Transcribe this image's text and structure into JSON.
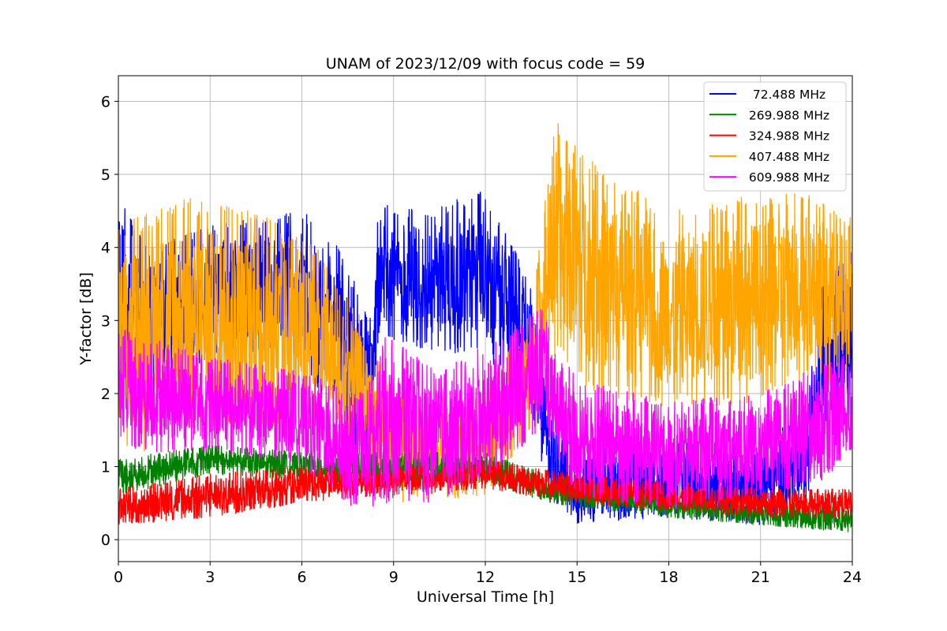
{
  "chart_data": {
    "type": "line",
    "title": "UNAM of 2023/12/09 with focus code = 59",
    "xlabel": "Universal Time [h]",
    "ylabel": "Y-factor [dB]",
    "xlim": [
      0,
      24
    ],
    "ylim": [
      -0.3,
      6.35
    ],
    "xticks": [
      0,
      3,
      6,
      9,
      12,
      15,
      18,
      21,
      24
    ],
    "yticks": [
      0,
      1,
      2,
      3,
      4,
      5,
      6
    ],
    "grid": true,
    "legend_position": "top-right",
    "series": [
      {
        "name": "  72.488 MHz",
        "color": "#0000ff",
        "envelope": [
          {
            "x": 0,
            "lo": 2.2,
            "hi": 4.7
          },
          {
            "x": 1,
            "lo": 1.8,
            "hi": 4.0
          },
          {
            "x": 3,
            "lo": 2.5,
            "hi": 4.3
          },
          {
            "x": 6,
            "lo": 2.5,
            "hi": 4.5
          },
          {
            "x": 7,
            "lo": 1.5,
            "hi": 4.2
          },
          {
            "x": 8.3,
            "lo": 1.0,
            "hi": 3.0
          },
          {
            "x": 8.5,
            "lo": 2.8,
            "hi": 4.6
          },
          {
            "x": 10,
            "lo": 2.6,
            "hi": 4.5
          },
          {
            "x": 12,
            "lo": 2.5,
            "hi": 4.8
          },
          {
            "x": 13.5,
            "lo": 1.8,
            "hi": 3.5
          },
          {
            "x": 14,
            "lo": 0.6,
            "hi": 2.0
          },
          {
            "x": 15,
            "lo": 0.2,
            "hi": 1.2
          },
          {
            "x": 18,
            "lo": 0.3,
            "hi": 1.4
          },
          {
            "x": 21,
            "lo": 0.2,
            "hi": 1.3
          },
          {
            "x": 22.5,
            "lo": 0.5,
            "hi": 1.8
          },
          {
            "x": 23,
            "lo": 1.5,
            "hi": 3.5
          },
          {
            "x": 24,
            "lo": 1.5,
            "hi": 4.0
          }
        ]
      },
      {
        "name": " 269.988 MHz",
        "color": "#008000",
        "envelope": [
          {
            "x": 0,
            "lo": 0.6,
            "hi": 1.1
          },
          {
            "x": 3,
            "lo": 0.9,
            "hi": 1.3
          },
          {
            "x": 6,
            "lo": 0.8,
            "hi": 1.2
          },
          {
            "x": 9,
            "lo": 0.7,
            "hi": 1.2
          },
          {
            "x": 12,
            "lo": 0.8,
            "hi": 1.2
          },
          {
            "x": 14,
            "lo": 0.5,
            "hi": 0.9
          },
          {
            "x": 18,
            "lo": 0.3,
            "hi": 0.6
          },
          {
            "x": 21,
            "lo": 0.2,
            "hi": 0.5
          },
          {
            "x": 24,
            "lo": 0.1,
            "hi": 0.5
          }
        ]
      },
      {
        "name": " 324.988 MHz",
        "color": "#ff0000",
        "envelope": [
          {
            "x": 0,
            "lo": 0.2,
            "hi": 0.7
          },
          {
            "x": 3,
            "lo": 0.3,
            "hi": 0.9
          },
          {
            "x": 6,
            "lo": 0.5,
            "hi": 1.0
          },
          {
            "x": 9,
            "lo": 0.6,
            "hi": 1.0
          },
          {
            "x": 12,
            "lo": 0.7,
            "hi": 1.1
          },
          {
            "x": 15,
            "lo": 0.5,
            "hi": 0.9
          },
          {
            "x": 18,
            "lo": 0.4,
            "hi": 0.8
          },
          {
            "x": 21,
            "lo": 0.3,
            "hi": 0.7
          },
          {
            "x": 24,
            "lo": 0.3,
            "hi": 0.7
          }
        ]
      },
      {
        "name": " 407.488 MHz",
        "color": "#ffa500",
        "envelope": [
          {
            "x": 0,
            "lo": 1.0,
            "hi": 4.3
          },
          {
            "x": 2,
            "lo": 1.5,
            "hi": 4.7
          },
          {
            "x": 4.5,
            "lo": 1.5,
            "hi": 4.5
          },
          {
            "x": 6.5,
            "lo": 1.5,
            "hi": 4.0
          },
          {
            "x": 8,
            "lo": 1.0,
            "hi": 3.0
          },
          {
            "x": 9,
            "lo": 0.5,
            "hi": 2.0
          },
          {
            "x": 12,
            "lo": 0.6,
            "hi": 2.0
          },
          {
            "x": 13.5,
            "lo": 1.5,
            "hi": 3.2
          },
          {
            "x": 14.3,
            "lo": 2.5,
            "hi": 5.8
          },
          {
            "x": 15.5,
            "lo": 2.0,
            "hi": 5.2
          },
          {
            "x": 18,
            "lo": 1.8,
            "hi": 4.5
          },
          {
            "x": 20.5,
            "lo": 1.8,
            "hi": 4.7
          },
          {
            "x": 22.5,
            "lo": 2.2,
            "hi": 4.8
          },
          {
            "x": 24,
            "lo": 2.0,
            "hi": 4.4
          }
        ]
      },
      {
        "name": " 609.988 MHz",
        "color": "#ff00ff",
        "envelope": [
          {
            "x": 0,
            "lo": 1.2,
            "hi": 2.9
          },
          {
            "x": 3,
            "lo": 1.2,
            "hi": 2.5
          },
          {
            "x": 6,
            "lo": 1.0,
            "hi": 2.3
          },
          {
            "x": 8,
            "lo": 0.3,
            "hi": 2.0
          },
          {
            "x": 8.7,
            "lo": 0.5,
            "hi": 2.8
          },
          {
            "x": 10.5,
            "lo": 0.5,
            "hi": 2.3
          },
          {
            "x": 12.5,
            "lo": 1.0,
            "hi": 2.8
          },
          {
            "x": 13.8,
            "lo": 1.5,
            "hi": 3.2
          },
          {
            "x": 15,
            "lo": 0.6,
            "hi": 2.2
          },
          {
            "x": 18,
            "lo": 0.4,
            "hi": 1.9
          },
          {
            "x": 21,
            "lo": 0.6,
            "hi": 2.0
          },
          {
            "x": 23,
            "lo": 0.8,
            "hi": 2.4
          },
          {
            "x": 24,
            "lo": 1.2,
            "hi": 2.6
          }
        ]
      }
    ]
  }
}
